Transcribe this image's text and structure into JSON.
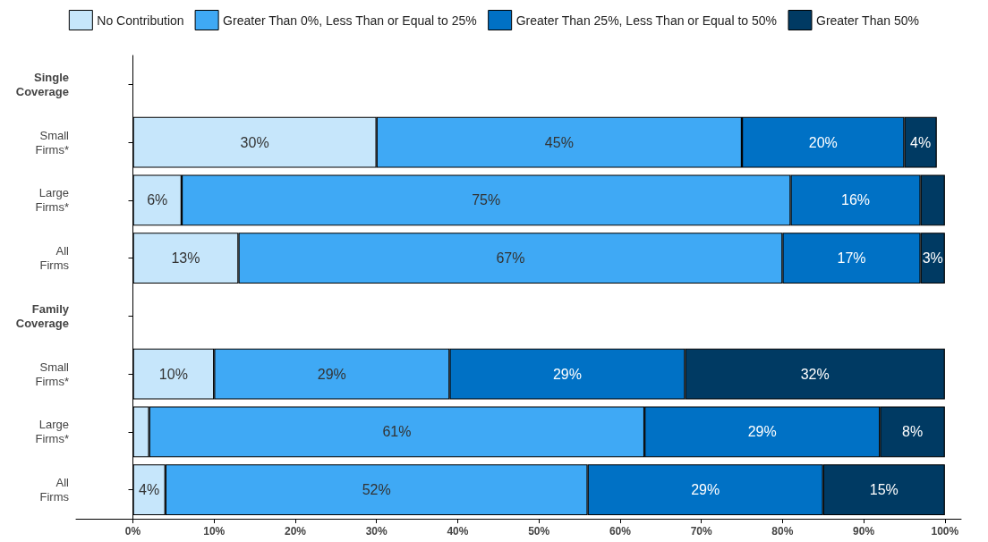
{
  "chart_data": {
    "type": "bar",
    "orientation": "horizontal",
    "stacked": true,
    "legend": "top",
    "categories": [
      "Single\nCoverage",
      "Small\nFirms*",
      "Large\nFirms*",
      "All\nFirms",
      "Family\nCoverage",
      "Small\nFirms*",
      "Large\nFirms*",
      "All\nFirms"
    ],
    "xlim": [
      -7,
      102
    ],
    "xticks": [
      {
        "value": 0,
        "label": "0%"
      },
      {
        "value": 10,
        "label": "10%"
      },
      {
        "value": 20,
        "label": "20%"
      },
      {
        "value": 30,
        "label": "30%"
      },
      {
        "value": 40,
        "label": "40%"
      },
      {
        "value": 50,
        "label": "50%"
      },
      {
        "value": 60,
        "label": "60%"
      },
      {
        "value": 70,
        "label": "70%"
      },
      {
        "value": 80,
        "label": "80%"
      },
      {
        "value": 90,
        "label": "90%"
      },
      {
        "value": 100,
        "label": "100%"
      }
    ],
    "series": [
      {
        "name": "No Contribution",
        "color": "#c6e6fb",
        "values": [
          null,
          30,
          6,
          13,
          null,
          10,
          2,
          4
        ],
        "value_labels": [
          null,
          "30%",
          "6%",
          "13%",
          null,
          "10%",
          null,
          "4%"
        ]
      },
      {
        "name": "Greater Than 0%, Less Than or Equal to 25%",
        "color": "#3fa9f5",
        "values": [
          null,
          45,
          75,
          67,
          null,
          29,
          61,
          52
        ],
        "value_labels": [
          null,
          "45%",
          "75%",
          "67%",
          null,
          "29%",
          "61%",
          "52%"
        ]
      },
      {
        "name": "Greater Than 25%, Less Than or Equal to 50%",
        "color": "#0071c5",
        "values": [
          null,
          20,
          16,
          17,
          null,
          29,
          29,
          29
        ],
        "value_labels": [
          null,
          "20%",
          "16%",
          "17%",
          null,
          "29%",
          "29%",
          "29%"
        ]
      },
      {
        "name": "Greater Than 50%",
        "color": "#003a63",
        "values": [
          null,
          4,
          3,
          3,
          null,
          32,
          8,
          15
        ],
        "value_labels": [
          null,
          "4%",
          null,
          "3%",
          null,
          "32%",
          "8%",
          "15%"
        ]
      }
    ]
  }
}
